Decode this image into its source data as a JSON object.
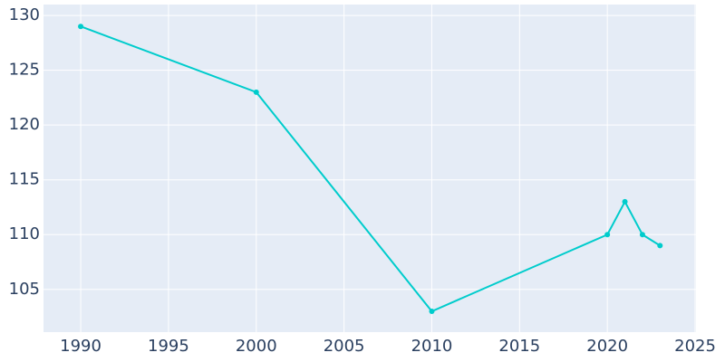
{
  "chart_data": {
    "type": "line",
    "x": [
      1990,
      2000,
      2010,
      2020,
      2021,
      2022,
      2023
    ],
    "series": [
      {
        "color": "#00cccc",
        "values": [
          129,
          123,
          103,
          110,
          113,
          110,
          109
        ]
      }
    ],
    "xlim": [
      1987.88,
      2025.05
    ],
    "ylim": [
      101.1,
      131
    ],
    "xticks": [
      1990,
      1995,
      2000,
      2005,
      2010,
      2015,
      2020,
      2025
    ],
    "yticks": [
      105,
      110,
      115,
      120,
      125,
      130
    ],
    "grid": true
  }
}
